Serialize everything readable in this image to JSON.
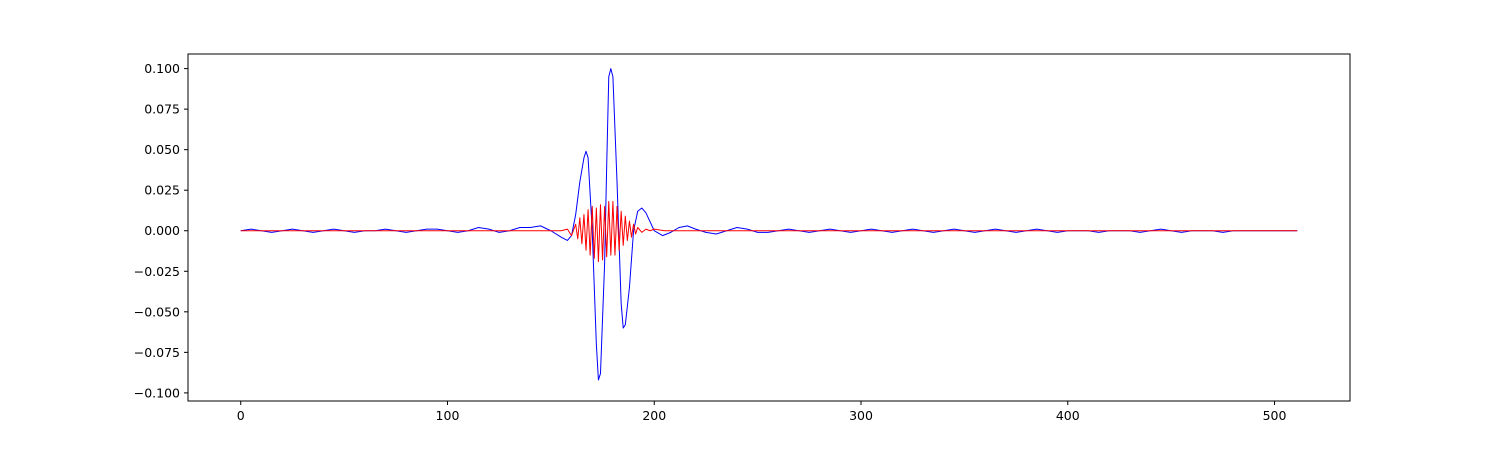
{
  "chart_data": {
    "type": "line",
    "title": "",
    "xlabel": "",
    "ylabel": "",
    "xlim": [
      -25.5,
      536.5
    ],
    "ylim": [
      -0.105,
      0.109
    ],
    "grid": false,
    "xticks": [
      0,
      100,
      200,
      300,
      400,
      500
    ],
    "yticks": [
      -0.1,
      -0.075,
      -0.05,
      -0.025,
      0.0,
      0.025,
      0.05,
      0.075,
      0.1
    ],
    "xtick_labels": [
      "0",
      "100",
      "200",
      "300",
      "400",
      "500"
    ],
    "ytick_labels": [
      "−0.100",
      "−0.075",
      "−0.050",
      "−0.025",
      "0.000",
      "0.025",
      "0.050",
      "0.075",
      "0.100"
    ],
    "x_range": [
      0,
      511
    ],
    "series": [
      {
        "color": "#0000ff",
        "points": [
          [
            0,
            0.0
          ],
          [
            5,
            0.001
          ],
          [
            10,
            0.0
          ],
          [
            15,
            -0.001
          ],
          [
            20,
            0.0
          ],
          [
            25,
            0.001
          ],
          [
            30,
            0.0
          ],
          [
            35,
            -0.001
          ],
          [
            40,
            0.0
          ],
          [
            45,
            0.001
          ],
          [
            50,
            0.0
          ],
          [
            55,
            -0.001
          ],
          [
            60,
            0.0
          ],
          [
            65,
            0.0
          ],
          [
            70,
            0.001
          ],
          [
            75,
            0.0
          ],
          [
            80,
            -0.001
          ],
          [
            85,
            0.0
          ],
          [
            90,
            0.001
          ],
          [
            95,
            0.001
          ],
          [
            100,
            0.0
          ],
          [
            105,
            -0.001
          ],
          [
            110,
            0.0
          ],
          [
            115,
            0.002
          ],
          [
            120,
            0.001
          ],
          [
            125,
            -0.001
          ],
          [
            130,
            0.0
          ],
          [
            135,
            0.002
          ],
          [
            140,
            0.002
          ],
          [
            145,
            0.003
          ],
          [
            150,
            0.0
          ],
          [
            155,
            -0.004
          ],
          [
            158,
            -0.006
          ],
          [
            160,
            -0.003
          ],
          [
            162,
            0.01
          ],
          [
            164,
            0.03
          ],
          [
            166,
            0.045
          ],
          [
            167,
            0.049
          ],
          [
            168,
            0.045
          ],
          [
            170,
            0.0
          ],
          [
            172,
            -0.07
          ],
          [
            173,
            -0.092
          ],
          [
            174,
            -0.088
          ],
          [
            176,
            -0.02
          ],
          [
            177,
            0.04
          ],
          [
            178,
            0.095
          ],
          [
            179,
            0.1
          ],
          [
            180,
            0.095
          ],
          [
            182,
            0.03
          ],
          [
            184,
            -0.045
          ],
          [
            185,
            -0.06
          ],
          [
            186,
            -0.058
          ],
          [
            188,
            -0.035
          ],
          [
            190,
            0.0
          ],
          [
            192,
            0.012
          ],
          [
            194,
            0.014
          ],
          [
            196,
            0.011
          ],
          [
            200,
            0.0
          ],
          [
            204,
            -0.003
          ],
          [
            208,
            -0.001
          ],
          [
            212,
            0.002
          ],
          [
            216,
            0.003
          ],
          [
            220,
            0.001
          ],
          [
            225,
            -0.001
          ],
          [
            230,
            -0.002
          ],
          [
            235,
            0.0
          ],
          [
            240,
            0.002
          ],
          [
            245,
            0.001
          ],
          [
            250,
            -0.001
          ],
          [
            255,
            -0.001
          ],
          [
            260,
            0.0
          ],
          [
            265,
            0.001
          ],
          [
            270,
            0.0
          ],
          [
            275,
            -0.001
          ],
          [
            280,
            0.0
          ],
          [
            285,
            0.001
          ],
          [
            290,
            0.0
          ],
          [
            295,
            -0.001
          ],
          [
            300,
            0.0
          ],
          [
            305,
            0.001
          ],
          [
            310,
            0.0
          ],
          [
            315,
            -0.001
          ],
          [
            320,
            0.0
          ],
          [
            325,
            0.001
          ],
          [
            330,
            0.0
          ],
          [
            335,
            -0.001
          ],
          [
            340,
            0.0
          ],
          [
            345,
            0.001
          ],
          [
            350,
            0.0
          ],
          [
            355,
            -0.001
          ],
          [
            360,
            0.0
          ],
          [
            365,
            0.001
          ],
          [
            370,
            0.0
          ],
          [
            375,
            -0.001
          ],
          [
            380,
            0.0
          ],
          [
            385,
            0.001
          ],
          [
            390,
            0.0
          ],
          [
            395,
            -0.001
          ],
          [
            400,
            0.0
          ],
          [
            405,
            0.0
          ],
          [
            410,
            0.0
          ],
          [
            415,
            -0.001
          ],
          [
            420,
            0.0
          ],
          [
            425,
            0.0
          ],
          [
            430,
            0.0
          ],
          [
            435,
            -0.001
          ],
          [
            440,
            0.0
          ],
          [
            445,
            0.001
          ],
          [
            450,
            0.0
          ],
          [
            455,
            -0.001
          ],
          [
            460,
            0.0
          ],
          [
            465,
            0.0
          ],
          [
            470,
            0.0
          ],
          [
            475,
            -0.001
          ],
          [
            480,
            0.0
          ],
          [
            485,
            0.0
          ],
          [
            490,
            0.0
          ],
          [
            495,
            0.0
          ],
          [
            500,
            0.0
          ],
          [
            505,
            0.0
          ],
          [
            511,
            0.0
          ]
        ]
      },
      {
        "color": "#ff0000",
        "points": [
          [
            0,
            0.0
          ],
          [
            120,
            0.0
          ],
          [
            140,
            0.0
          ],
          [
            150,
            0.0
          ],
          [
            155,
            0.0
          ],
          [
            158,
            0.001
          ],
          [
            160,
            -0.003
          ],
          [
            162,
            0.004
          ],
          [
            163,
            -0.005
          ],
          [
            164,
            0.008
          ],
          [
            165,
            -0.008
          ],
          [
            166,
            0.01
          ],
          [
            167,
            -0.012
          ],
          [
            168,
            0.013
          ],
          [
            169,
            -0.015
          ],
          [
            170,
            0.015
          ],
          [
            171,
            -0.017
          ],
          [
            172,
            0.014
          ],
          [
            173,
            -0.019
          ],
          [
            174,
            0.016
          ],
          [
            175,
            -0.018
          ],
          [
            176,
            0.015
          ],
          [
            177,
            -0.016
          ],
          [
            178,
            0.018
          ],
          [
            179,
            -0.015
          ],
          [
            180,
            0.018
          ],
          [
            181,
            -0.015
          ],
          [
            182,
            0.015
          ],
          [
            183,
            -0.012
          ],
          [
            184,
            0.012
          ],
          [
            185,
            -0.009
          ],
          [
            186,
            0.009
          ],
          [
            187,
            -0.006
          ],
          [
            188,
            0.006
          ],
          [
            189,
            -0.004
          ],
          [
            190,
            0.004
          ],
          [
            191,
            -0.002
          ],
          [
            192,
            0.002
          ],
          [
            194,
            -0.001
          ],
          [
            196,
            0.001
          ],
          [
            198,
            0.0
          ],
          [
            200,
            0.001
          ],
          [
            205,
            0.0
          ],
          [
            210,
            0.0
          ],
          [
            220,
            0.0
          ],
          [
            240,
            0.0
          ],
          [
            300,
            0.0
          ],
          [
            400,
            0.0
          ],
          [
            511,
            0.0
          ]
        ]
      }
    ]
  }
}
